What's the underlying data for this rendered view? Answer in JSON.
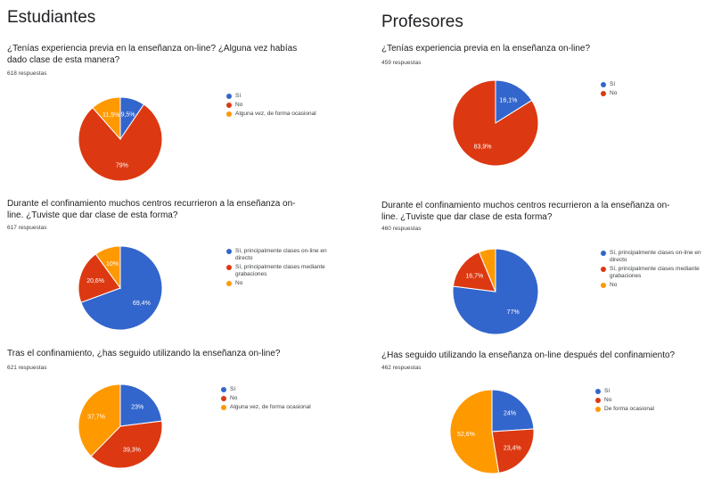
{
  "headers": {
    "students": "Estudiantes",
    "teachers": "Profesores"
  },
  "colors": {
    "blue": "#3366cc",
    "red": "#dc3912",
    "orange": "#ff9900"
  },
  "chart_data": [
    {
      "type": "pie",
      "title": "¿Tenías experiencia previa en la enseñanza on-line? ¿Alguna vez habías dado clase de esta manera?",
      "responses": "618 respuestas",
      "categories": [
        "Sí",
        "No",
        "Alguna vez, de forma ocasional"
      ],
      "values": [
        9.5,
        79,
        11.5
      ],
      "labels": [
        "9,5%",
        "79%",
        "11,5%"
      ],
      "colors": [
        "#3366cc",
        "#dc3912",
        "#ff9900"
      ],
      "legend": "right"
    },
    {
      "type": "pie",
      "title": "Durante el confinamiento muchos centros recurrieron a la enseñanza on-line. ¿Tuviste que dar clase de esta forma?",
      "responses": "617 respuestas",
      "categories": [
        "Sí, principalmente clases on-line en directo",
        "Sí, principalmente clases mediante grabaciones",
        "No"
      ],
      "values": [
        69.4,
        20.6,
        10
      ],
      "labels": [
        "69,4%",
        "20,6%",
        "10%"
      ],
      "colors": [
        "#3366cc",
        "#dc3912",
        "#ff9900"
      ],
      "legend": "right"
    },
    {
      "type": "pie",
      "title": "Tras el confinamiento, ¿has seguido utilizando la enseñanza on-line?",
      "responses": "621 respuestas",
      "categories": [
        "Sí",
        "No",
        "Alguna vez, de forma ocasional"
      ],
      "values": [
        23,
        39.3,
        37.7
      ],
      "labels": [
        "23%",
        "39,3%",
        "37,7%"
      ],
      "colors": [
        "#3366cc",
        "#dc3912",
        "#ff9900"
      ],
      "legend": "right"
    },
    {
      "type": "pie",
      "title": "¿Tenías experiencia previa en la enseñanza on-line?",
      "responses": "459 respuestas",
      "categories": [
        "Sí",
        "No"
      ],
      "values": [
        16.1,
        83.9
      ],
      "labels": [
        "16,1%",
        "83,9%"
      ],
      "colors": [
        "#3366cc",
        "#dc3912"
      ],
      "legend": "right"
    },
    {
      "type": "pie",
      "title": "Durante el confinamiento muchos centros recurrieron a la enseñanza on-line. ¿Tuviste que dar clase de esta forma?",
      "responses": "460 respuestas",
      "categories": [
        "Sí, principalmente clases on-line en directo",
        "Sí, principalmente clases mediante grabaciones",
        "No"
      ],
      "values": [
        77,
        16.7,
        6.3
      ],
      "labels": [
        "77%",
        "16,7%",
        ""
      ],
      "colors": [
        "#3366cc",
        "#dc3912",
        "#ff9900"
      ],
      "legend": "right"
    },
    {
      "type": "pie",
      "title": "¿Has seguido utilizando la enseñanza on-line después del confinamiento?",
      "responses": "462 respuestas",
      "categories": [
        "Sí",
        "No",
        "De forma ocasional"
      ],
      "values": [
        24,
        23.4,
        52.6
      ],
      "labels": [
        "24%",
        "23,4%",
        "52,6%"
      ],
      "colors": [
        "#3366cc",
        "#dc3912",
        "#ff9900"
      ],
      "legend": "right"
    }
  ]
}
